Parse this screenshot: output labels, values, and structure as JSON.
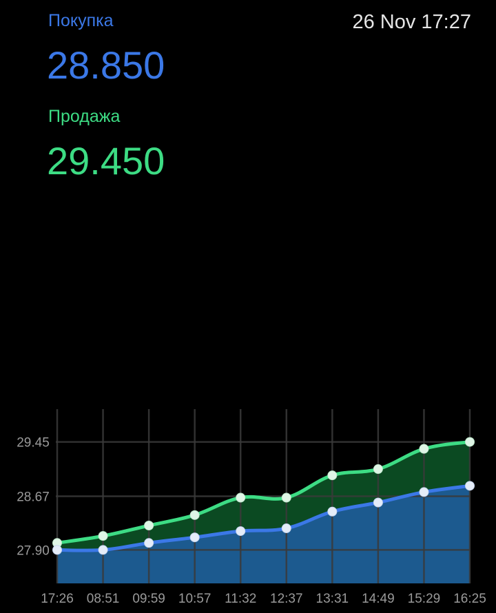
{
  "header": {
    "buy_label": "Покупка",
    "buy_value": "28.850",
    "sell_label": "Продажа",
    "sell_value": "29.450",
    "timestamp": "26 Nov 17:27"
  },
  "colors": {
    "buy": "#3b78e7",
    "sell": "#3ddc84",
    "buy_fill": "#1c5a8f",
    "sell_fill": "#0b4a22",
    "background": "#000000"
  },
  "chart_data": {
    "type": "area",
    "categories": [
      "17:26",
      "08:51",
      "09:59",
      "10:57",
      "11:32",
      "12:37",
      "13:31",
      "14:49",
      "15:29",
      "16:25"
    ],
    "series": [
      {
        "name": "Продажа",
        "values": [
          28.0,
          28.1,
          28.25,
          28.4,
          28.65,
          28.65,
          28.97,
          29.06,
          29.35,
          29.45
        ]
      },
      {
        "name": "Покупка",
        "values": [
          27.9,
          27.9,
          28.0,
          28.08,
          28.17,
          28.21,
          28.45,
          28.58,
          28.73,
          28.82
        ]
      }
    ],
    "ytick_labels": [
      "29.45",
      "28.67",
      "27.90"
    ],
    "ytick_values": [
      29.45,
      28.67,
      27.9
    ],
    "ylim": [
      27.42,
      29.92
    ],
    "grid": true
  }
}
